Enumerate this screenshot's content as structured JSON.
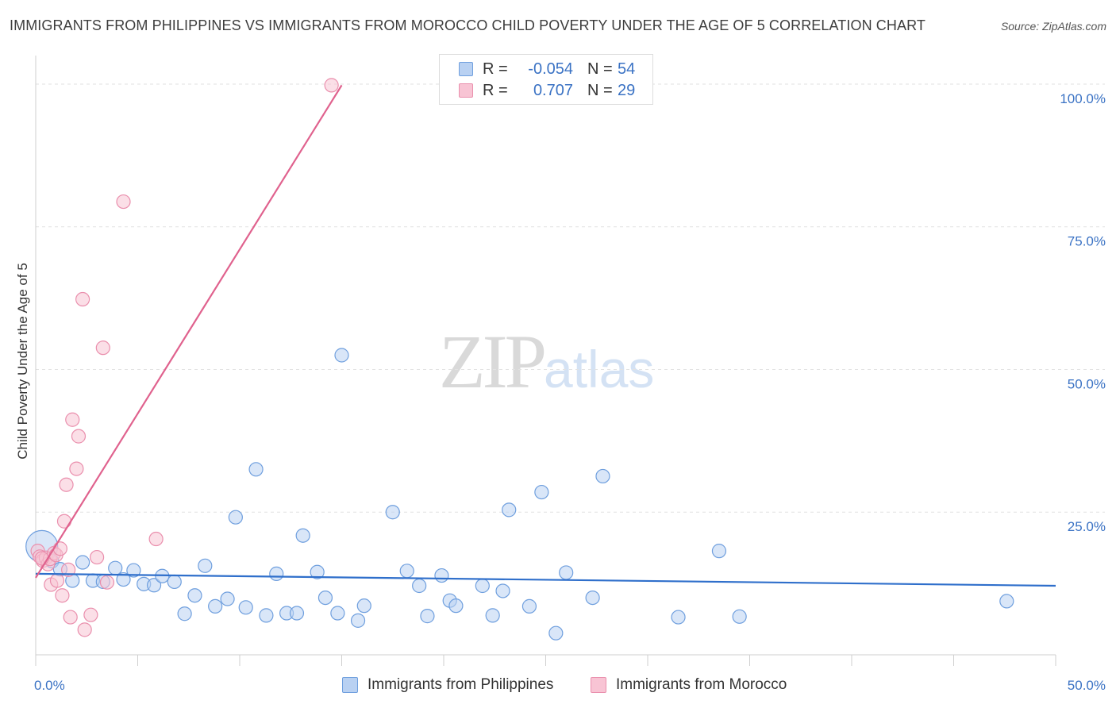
{
  "title": "IMMIGRANTS FROM PHILIPPINES VS IMMIGRANTS FROM MOROCCO CHILD POVERTY UNDER THE AGE OF 5 CORRELATION CHART",
  "source": "Source: ZipAtlas.com",
  "watermark": {
    "zip": "ZIP",
    "atlas": "atlas"
  },
  "legend": {
    "rows": [
      {
        "r_label": "R =",
        "r_value": "-0.054",
        "n_label": "N =",
        "n_value": "54"
      },
      {
        "r_label": "R =",
        "r_value": "0.707",
        "n_label": "N =",
        "n_value": "29"
      }
    ]
  },
  "bottom_legend": {
    "philippines": "Immigrants from Philippines",
    "morocco": "Immigrants from Morocco"
  },
  "colors": {
    "philippines_fill": "#b9d1f2",
    "philippines_stroke": "#6f9fde",
    "philippines_line": "#2f6fcb",
    "morocco_fill": "#f8c4d4",
    "morocco_stroke": "#ea8fad",
    "morocco_line": "#e0628e",
    "axis_label": "#3a72c4",
    "grid": "#e2e2e2"
  },
  "chart_data": {
    "type": "scatter",
    "title": "IMMIGRANTS FROM PHILIPPINES VS IMMIGRANTS FROM MOROCCO CHILD POVERTY UNDER THE AGE OF 5 CORRELATION CHART",
    "xlabel": "",
    "ylabel": "Child Poverty Under the Age of 5",
    "xlim": [
      0,
      50
    ],
    "ylim": [
      0,
      105
    ],
    "x_tick_labels": [
      "0.0%",
      "50.0%"
    ],
    "y_ticks": [
      25,
      50,
      75,
      100
    ],
    "y_tick_labels": [
      "25.0%",
      "50.0%",
      "75.0%",
      "100.0%"
    ],
    "grid": "horizontal dashed",
    "legend_position": "top-center",
    "series": [
      {
        "name": "Immigrants from Philippines",
        "r": -0.054,
        "n": 54,
        "trend": {
          "x": [
            0,
            50
          ],
          "y": [
            14.2,
            12.1
          ]
        },
        "points": [
          {
            "x": 0.3,
            "y": 19.0,
            "big": true
          },
          {
            "x": 0.8,
            "y": 16.4
          },
          {
            "x": 1.2,
            "y": 15.0
          },
          {
            "x": 1.8,
            "y": 13.0
          },
          {
            "x": 2.3,
            "y": 16.2
          },
          {
            "x": 2.8,
            "y": 13.0
          },
          {
            "x": 3.3,
            "y": 12.8
          },
          {
            "x": 3.9,
            "y": 15.2
          },
          {
            "x": 4.3,
            "y": 13.2
          },
          {
            "x": 4.8,
            "y": 14.8
          },
          {
            "x": 5.3,
            "y": 12.4
          },
          {
            "x": 5.8,
            "y": 12.2
          },
          {
            "x": 6.2,
            "y": 13.8
          },
          {
            "x": 6.8,
            "y": 12.8
          },
          {
            "x": 7.3,
            "y": 7.2
          },
          {
            "x": 7.8,
            "y": 10.4
          },
          {
            "x": 8.3,
            "y": 15.6
          },
          {
            "x": 8.8,
            "y": 8.5
          },
          {
            "x": 9.4,
            "y": 9.8
          },
          {
            "x": 9.8,
            "y": 24.1
          },
          {
            "x": 10.3,
            "y": 8.3
          },
          {
            "x": 10.8,
            "y": 32.5
          },
          {
            "x": 11.3,
            "y": 6.9
          },
          {
            "x": 11.8,
            "y": 14.2
          },
          {
            "x": 12.3,
            "y": 7.3
          },
          {
            "x": 12.8,
            "y": 7.3
          },
          {
            "x": 13.1,
            "y": 20.9
          },
          {
            "x": 13.8,
            "y": 14.5
          },
          {
            "x": 14.2,
            "y": 10.0
          },
          {
            "x": 14.8,
            "y": 7.3
          },
          {
            "x": 15.0,
            "y": 52.5
          },
          {
            "x": 15.8,
            "y": 6.0
          },
          {
            "x": 16.1,
            "y": 8.6
          },
          {
            "x": 17.5,
            "y": 25.0
          },
          {
            "x": 18.2,
            "y": 14.7
          },
          {
            "x": 18.8,
            "y": 12.1
          },
          {
            "x": 19.2,
            "y": 6.8
          },
          {
            "x": 19.9,
            "y": 13.9
          },
          {
            "x": 20.3,
            "y": 9.5
          },
          {
            "x": 20.6,
            "y": 8.6
          },
          {
            "x": 21.9,
            "y": 12.1
          },
          {
            "x": 22.4,
            "y": 6.9
          },
          {
            "x": 22.9,
            "y": 11.2
          },
          {
            "x": 23.2,
            "y": 25.4
          },
          {
            "x": 24.2,
            "y": 8.5
          },
          {
            "x": 24.8,
            "y": 28.5
          },
          {
            "x": 25.5,
            "y": 3.8
          },
          {
            "x": 26.0,
            "y": 14.4
          },
          {
            "x": 27.3,
            "y": 10.0
          },
          {
            "x": 27.8,
            "y": 31.3
          },
          {
            "x": 31.5,
            "y": 6.6
          },
          {
            "x": 33.5,
            "y": 18.2
          },
          {
            "x": 34.5,
            "y": 6.7
          },
          {
            "x": 47.6,
            "y": 9.4
          }
        ]
      },
      {
        "name": "Immigrants from Morocco",
        "r": 0.707,
        "n": 29,
        "trend": {
          "x": [
            0,
            15.0
          ],
          "y": [
            13.5,
            99.8
          ]
        },
        "points": [
          {
            "x": 0.1,
            "y": 18.2
          },
          {
            "x": 0.2,
            "y": 17.2
          },
          {
            "x": 0.35,
            "y": 16.5
          },
          {
            "x": 0.5,
            "y": 17.0
          },
          {
            "x": 0.6,
            "y": 15.9
          },
          {
            "x": 0.7,
            "y": 16.8
          },
          {
            "x": 0.75,
            "y": 12.3
          },
          {
            "x": 0.9,
            "y": 17.8
          },
          {
            "x": 1.0,
            "y": 17.5
          },
          {
            "x": 1.05,
            "y": 13.0
          },
          {
            "x": 1.2,
            "y": 18.6
          },
          {
            "x": 1.3,
            "y": 10.4
          },
          {
            "x": 1.4,
            "y": 23.4
          },
          {
            "x": 1.5,
            "y": 29.8
          },
          {
            "x": 1.6,
            "y": 14.9
          },
          {
            "x": 1.7,
            "y": 6.6
          },
          {
            "x": 1.8,
            "y": 41.2
          },
          {
            "x": 2.0,
            "y": 32.6
          },
          {
            "x": 2.1,
            "y": 38.3
          },
          {
            "x": 2.3,
            "y": 62.3
          },
          {
            "x": 2.4,
            "y": 4.4
          },
          {
            "x": 2.7,
            "y": 7.0
          },
          {
            "x": 3.0,
            "y": 17.1
          },
          {
            "x": 3.3,
            "y": 53.8
          },
          {
            "x": 3.5,
            "y": 12.7
          },
          {
            "x": 4.3,
            "y": 79.4
          },
          {
            "x": 5.9,
            "y": 20.3
          },
          {
            "x": 14.5,
            "y": 99.8
          },
          {
            "x": 0.3,
            "y": 16.9
          }
        ]
      }
    ]
  }
}
